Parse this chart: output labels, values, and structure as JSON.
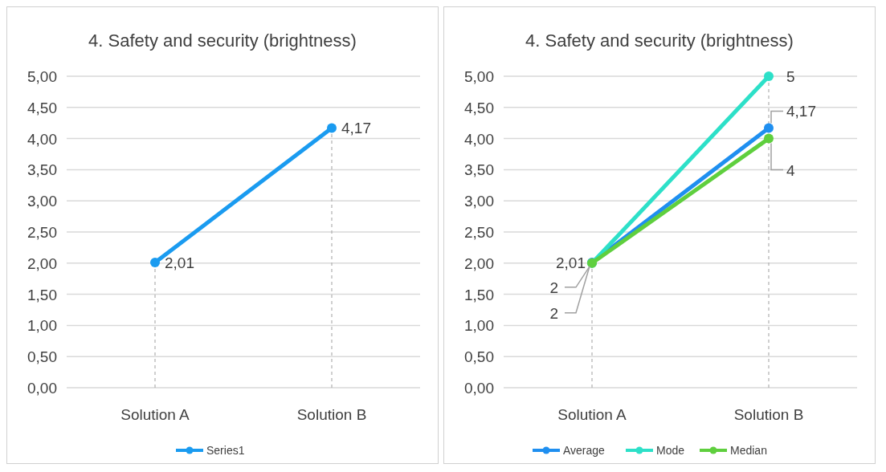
{
  "chart_data": [
    {
      "type": "line",
      "title": "4. Safety and security (brightness)",
      "categories": [
        "Solution A",
        "Solution B"
      ],
      "series": [
        {
          "name": "Series1",
          "color": "#1a9bf0",
          "values": [
            2.01,
            4.17
          ],
          "value_labels": [
            "2,01",
            "4,17"
          ]
        }
      ],
      "ylim": [
        0,
        5
      ],
      "yticks": [
        {
          "value": 0,
          "label": "0,00"
        },
        {
          "value": 0.5,
          "label": "0,50"
        },
        {
          "value": 1,
          "label": "1,00"
        },
        {
          "value": 1.5,
          "label": "1,50"
        },
        {
          "value": 2,
          "label": "2,00"
        },
        {
          "value": 2.5,
          "label": "2,50"
        },
        {
          "value": 3,
          "label": "3,00"
        },
        {
          "value": 3.5,
          "label": "3,50"
        },
        {
          "value": 4,
          "label": "4,00"
        },
        {
          "value": 4.5,
          "label": "4,50"
        },
        {
          "value": 5,
          "label": "5,00"
        }
      ],
      "grid": "y",
      "legend": "bottom",
      "marker": "circle",
      "ref_lines": [
        {
          "axis": "x",
          "value": "Solution A",
          "color": "#b0b0b0",
          "line_style": "dashed"
        },
        {
          "axis": "x",
          "value": "Solution B",
          "color": "#b0b0b0",
          "line_style": "dashed"
        }
      ]
    },
    {
      "type": "line",
      "title": "4. Safety and security (brightness)",
      "categories": [
        "Solution A",
        "Solution B"
      ],
      "series": [
        {
          "name": "Average",
          "color": "#1f8ff0",
          "values": [
            2.01,
            4.17
          ],
          "value_labels": [
            "2,01",
            "4,17"
          ]
        },
        {
          "name": "Mode",
          "color": "#2de0c8",
          "values": [
            2,
            5
          ],
          "value_labels": [
            "2",
            "5"
          ]
        },
        {
          "name": "Median",
          "color": "#5fcf3e",
          "values": [
            2,
            4
          ],
          "value_labels": [
            "2",
            "4"
          ]
        }
      ],
      "ylim": [
        0,
        5
      ],
      "yticks": [
        {
          "value": 0,
          "label": "0,00"
        },
        {
          "value": 0.5,
          "label": "0,50"
        },
        {
          "value": 1,
          "label": "1,00"
        },
        {
          "value": 1.5,
          "label": "1,50"
        },
        {
          "value": 2,
          "label": "2,00"
        },
        {
          "value": 2.5,
          "label": "2,50"
        },
        {
          "value": 3,
          "label": "3,00"
        },
        {
          "value": 3.5,
          "label": "3,50"
        },
        {
          "value": 4,
          "label": "4,00"
        },
        {
          "value": 4.5,
          "label": "4,50"
        },
        {
          "value": 5,
          "label": "5,00"
        }
      ],
      "grid": "y",
      "legend": "bottom",
      "marker": "circle",
      "ref_lines": [
        {
          "axis": "x",
          "value": "Solution A",
          "color": "#b0b0b0",
          "line_style": "dashed"
        },
        {
          "axis": "x",
          "value": "Solution B",
          "color": "#b0b0b0",
          "line_style": "dashed"
        }
      ]
    }
  ]
}
